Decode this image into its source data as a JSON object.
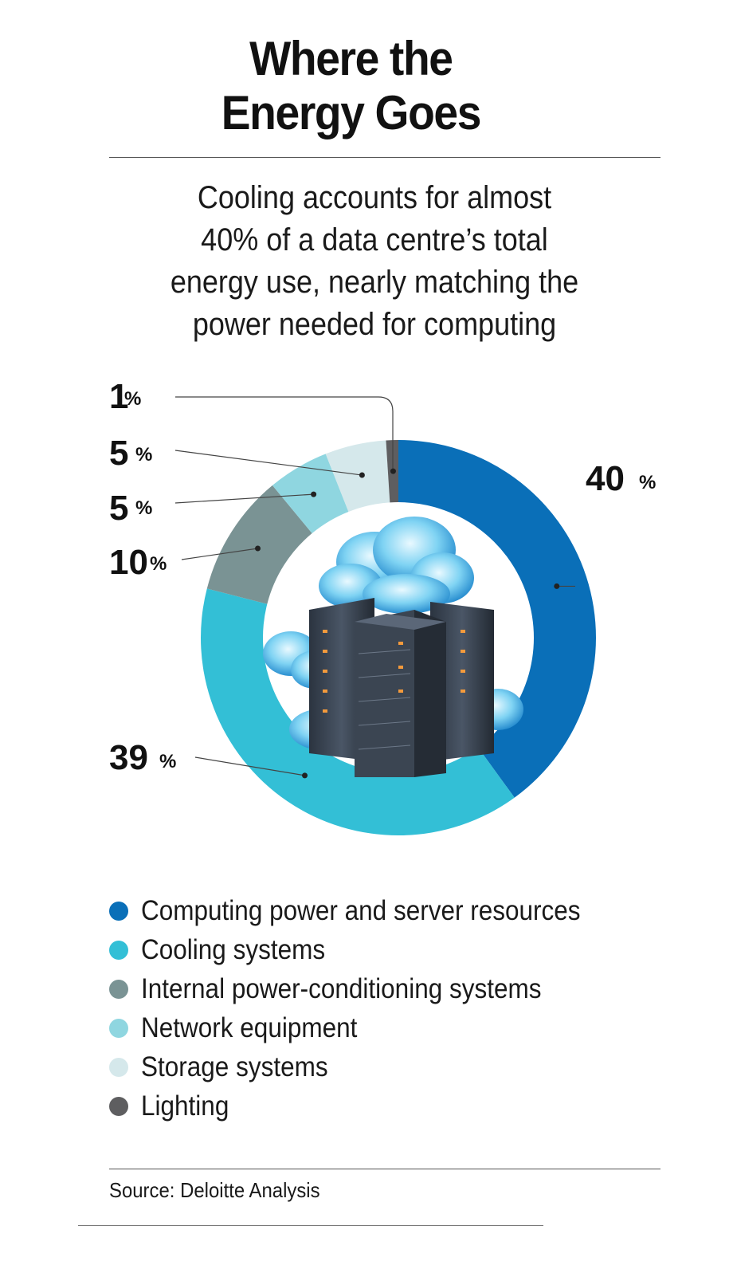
{
  "title_lines": [
    "Where the",
    "Energy Goes"
  ],
  "subtitle_lines": [
    "Cooling accounts for almost",
    "40% of a data centre’s total",
    "energy use, nearly matching the",
    "power needed for computing"
  ],
  "chart_data": {
    "type": "pie",
    "variant": "donut",
    "categories": [
      "Computing power and server resources",
      "Cooling systems",
      "Internal power-conditioning systems",
      "Network equipment",
      "Storage systems",
      "Lighting"
    ],
    "values": [
      40,
      39,
      10,
      5,
      5,
      1
    ],
    "value_labels": [
      "40",
      "39",
      "10",
      "5",
      "5",
      "1"
    ],
    "unit": "%",
    "colors": [
      "#0a6fb8",
      "#33bfd6",
      "#7a9394",
      "#8fd6e0",
      "#d5e8eb",
      "#5e5e60"
    ],
    "legend_position": "bottom",
    "center_image": "server-racks-with-clouds"
  },
  "legend": [
    {
      "label": "Computing power and server resources",
      "color": "#0a6fb8"
    },
    {
      "label": "Cooling systems",
      "color": "#33bfd6"
    },
    {
      "label": "Internal power-conditioning systems",
      "color": "#7a9394"
    },
    {
      "label": "Network equipment",
      "color": "#8fd6e0"
    },
    {
      "label": "Storage systems",
      "color": "#d5e8eb"
    },
    {
      "label": "Lighting",
      "color": "#5e5e60"
    }
  ],
  "source": "Source: Deloitte Analysis"
}
